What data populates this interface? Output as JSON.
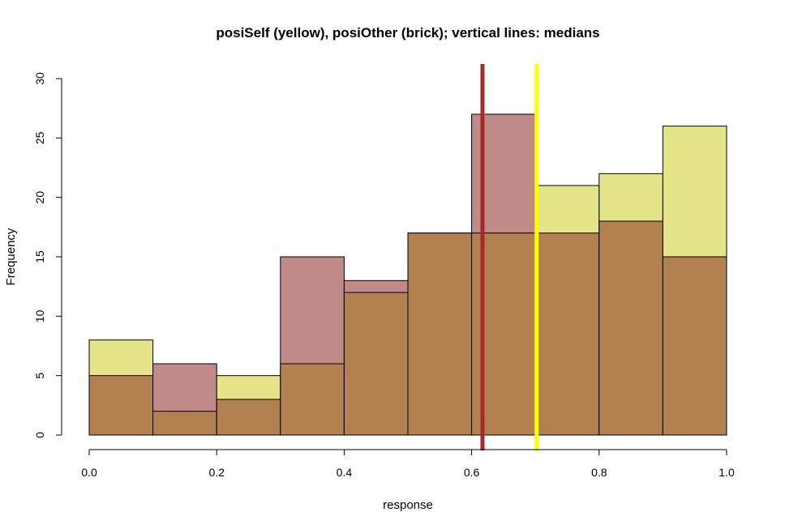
{
  "chart_data": {
    "type": "bar",
    "title": "posiSelf (yellow),  posiOther (brick);   vertical lines: medians",
    "xlabel": "response",
    "ylabel": "Frequency",
    "xlim": [
      0,
      1
    ],
    "ylim": [
      0,
      30
    ],
    "x_ticks": [
      "0.0",
      "0.2",
      "0.4",
      "0.6",
      "0.8",
      "1.0"
    ],
    "y_ticks": [
      "0",
      "5",
      "10",
      "15",
      "20",
      "25",
      "30"
    ],
    "bin_edges": [
      0.0,
      0.1,
      0.2,
      0.3,
      0.4,
      0.5,
      0.6,
      0.7,
      0.8,
      0.9,
      1.0
    ],
    "grid": false,
    "series": [
      {
        "name": "posiSelf",
        "color": "#e4e489",
        "values": [
          8,
          2,
          5,
          6,
          12,
          17,
          17,
          21,
          22,
          26
        ],
        "median": 0.702,
        "median_color": "#ffff00"
      },
      {
        "name": "posiOther",
        "color": "#c08a89",
        "values": [
          5,
          6,
          3,
          15,
          13,
          17,
          27,
          17,
          18,
          15
        ],
        "median": 0.617,
        "median_color": "#a52a2a"
      }
    ],
    "overlap_color": "#b38050"
  }
}
